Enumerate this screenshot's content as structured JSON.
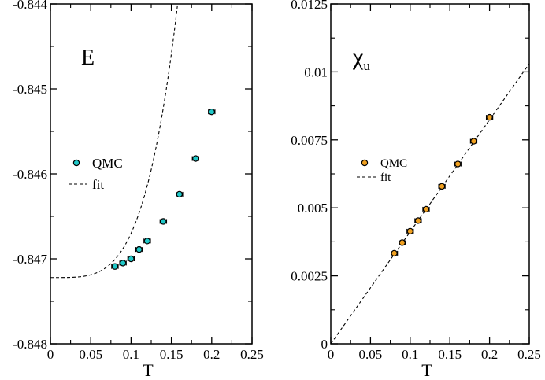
{
  "chart_data": [
    {
      "type": "scatter",
      "panel": "left",
      "title": "",
      "panel_label": "E",
      "xlabel": "T",
      "ylabel": "",
      "xlim": [
        0,
        0.25
      ],
      "ylim": [
        -0.848,
        -0.844
      ],
      "grid": false,
      "legend_position": "middle-left",
      "x_ticks": [
        0,
        0.05,
        0.1,
        0.15,
        0.2,
        0.25
      ],
      "x_tick_labels": [
        "0",
        "0.05",
        "0.1",
        "0.15",
        "0.2",
        "0.25"
      ],
      "y_ticks": [
        -0.848,
        -0.847,
        -0.846,
        -0.845,
        -0.844
      ],
      "y_tick_labels": [
        "-0.848",
        "-0.847",
        "-0.846",
        "-0.845",
        "-0.844"
      ],
      "series": [
        {
          "name": "QMC",
          "kind": "points",
          "color": "#20c8c8",
          "x": [
            0.08,
            0.09,
            0.1,
            0.11,
            0.12,
            0.14,
            0.16,
            0.18,
            0.2
          ],
          "y": [
            -0.84709,
            -0.84705,
            -0.847,
            -0.84689,
            -0.84679,
            -0.84656,
            -0.84624,
            -0.84582,
            -0.84527
          ],
          "xerr": 0.004
        },
        {
          "name": "fit",
          "kind": "dashed-line",
          "color": "#000000",
          "formula": "y = -0.84722 + 5.2 * x^4",
          "x_range": [
            0,
            0.25
          ]
        }
      ]
    },
    {
      "type": "scatter",
      "panel": "right",
      "title": "",
      "panel_label": "χ",
      "panel_label_sub": "u",
      "xlabel": "T",
      "ylabel": "",
      "xlim": [
        0,
        0.25
      ],
      "ylim": [
        0,
        0.0125
      ],
      "grid": false,
      "legend_position": "middle-left",
      "x_ticks": [
        0,
        0.05,
        0.1,
        0.15,
        0.2,
        0.25
      ],
      "x_tick_labels": [
        "0",
        "0.05",
        "0.1",
        "0.15",
        "0.2",
        "0.25"
      ],
      "y_ticks": [
        0,
        0.0025,
        0.005,
        0.0075,
        0.01,
        0.0125
      ],
      "y_tick_labels": [
        "0",
        "0.0025",
        "0.005",
        "0.0075",
        "0.01",
        "0.0125"
      ],
      "series": [
        {
          "name": "QMC",
          "kind": "points",
          "color": "#f0a020",
          "x": [
            0.08,
            0.09,
            0.1,
            0.11,
            0.12,
            0.14,
            0.16,
            0.18,
            0.2
          ],
          "y": [
            0.00333,
            0.00372,
            0.00414,
            0.00453,
            0.00495,
            0.00579,
            0.00661,
            0.00745,
            0.00833
          ],
          "xerr": 0.004
        },
        {
          "name": "fit",
          "kind": "dashed-line",
          "color": "#000000",
          "formula": "y = 0.0412 * x",
          "x_range": [
            0,
            0.25
          ]
        }
      ]
    }
  ]
}
